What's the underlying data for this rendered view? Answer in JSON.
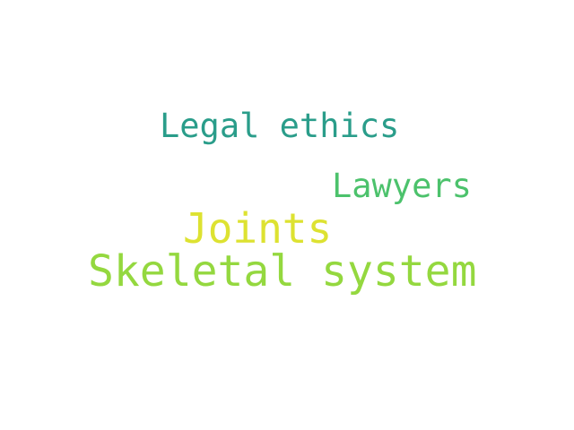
{
  "word_cloud": {
    "words": [
      {
        "text": "Legal ethics",
        "color": "#2a9d8a"
      },
      {
        "text": "Lawyers",
        "color": "#4cc26c"
      },
      {
        "text": "Joints",
        "color": "#dde231"
      },
      {
        "text": "Skeletal system",
        "color": "#94d83f"
      }
    ]
  }
}
